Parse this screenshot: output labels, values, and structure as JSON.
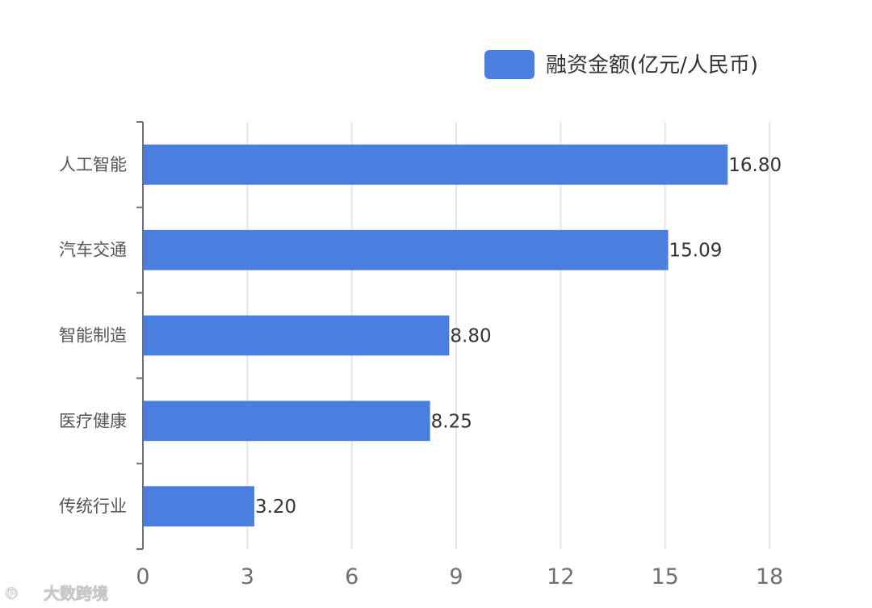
{
  "legend": {
    "label": "融资金额(亿元/人民币)",
    "color": "#4a7fe0"
  },
  "watermark": {
    "text": "大数跨境"
  },
  "chart_data": {
    "type": "bar",
    "orientation": "horizontal",
    "categories": [
      "人工智能",
      "汽车交通",
      "智能制造",
      "医疗健康",
      "传统行业"
    ],
    "series": [
      {
        "name": "融资金额(亿元/人民币)",
        "values": [
          16.8,
          15.09,
          8.8,
          8.25,
          3.2
        ],
        "value_labels": [
          "16.80",
          "15.09",
          "8.80",
          "8.25",
          "3.20"
        ],
        "color": "#4a7fe0"
      }
    ],
    "xlim": [
      0,
      18
    ],
    "x_ticks": [
      "0",
      "3",
      "6",
      "9",
      "12",
      "15",
      "18"
    ],
    "grid": "vertical",
    "legend_position": "top-right"
  }
}
